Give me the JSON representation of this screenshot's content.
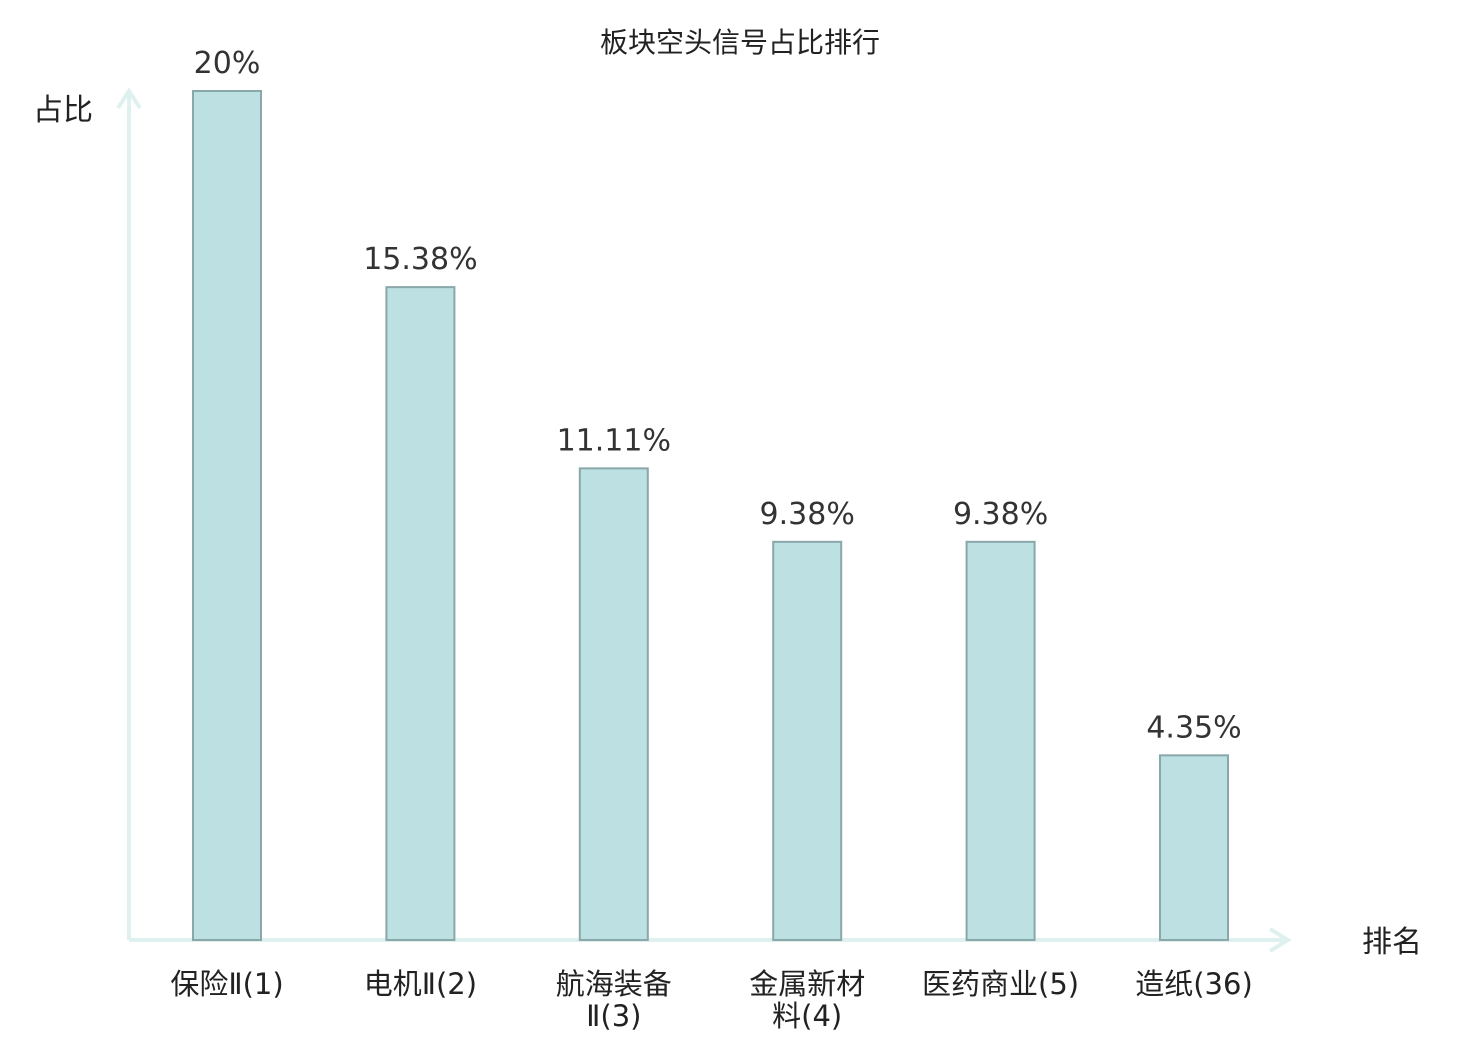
{
  "chart_data": {
    "type": "bar",
    "title": "板块空头信号占比排行",
    "ylabel": "占比",
    "xlabel": "排名",
    "ylim": [
      0,
      20
    ],
    "grid": false,
    "categories": [
      {
        "lines": [
          "保险Ⅱ(1)"
        ],
        "highlight": false
      },
      {
        "lines": [
          "电机Ⅱ(2)"
        ],
        "highlight": false
      },
      {
        "lines": [
          "航海装备",
          "Ⅱ(3)"
        ],
        "highlight": false
      },
      {
        "lines": [
          "金属新材",
          "料(4)"
        ],
        "highlight": false
      },
      {
        "lines": [
          "医药商业(5)"
        ],
        "highlight": false
      },
      {
        "lines": [
          "造纸(36)"
        ],
        "highlight": true
      }
    ],
    "values": [
      20,
      15.38,
      11.11,
      9.38,
      9.38,
      4.35
    ],
    "value_labels": [
      "20%",
      "15.38%",
      "11.11%",
      "9.38%",
      "9.38%",
      "4.35%"
    ],
    "colors": {
      "bar_fill": "#bde0e2",
      "bar_stroke": "#8aa7a9",
      "axis": "#dff1ef",
      "highlight_text": "#e02020",
      "text": "#222222"
    }
  }
}
